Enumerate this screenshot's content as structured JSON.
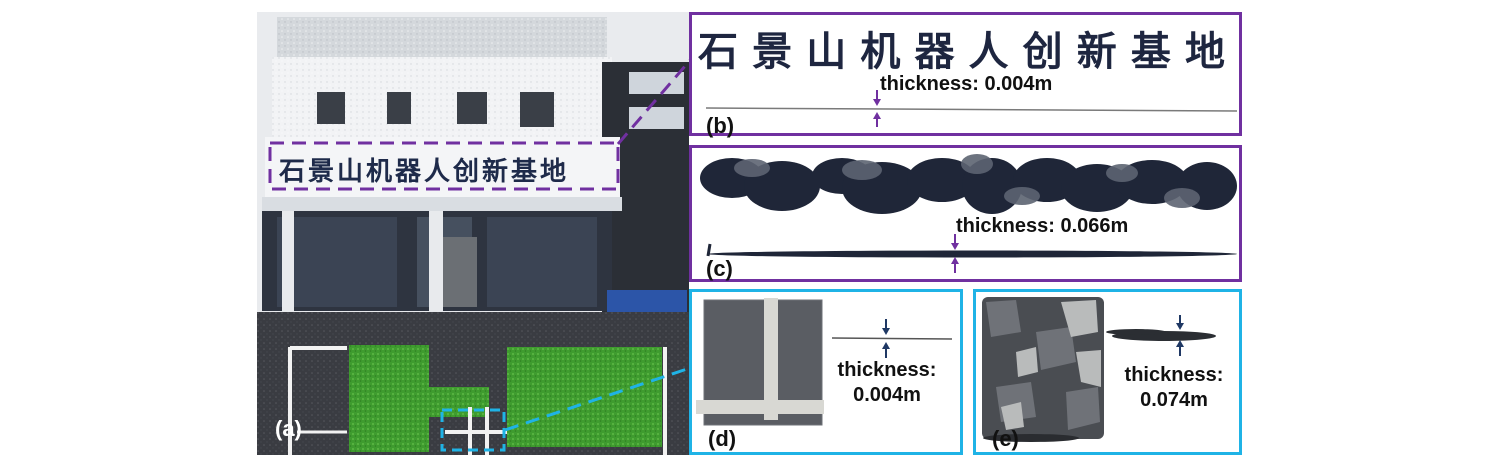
{
  "panels": {
    "a": {
      "label": "(a)"
    },
    "b": {
      "label": "(b)",
      "thickness": "thickness: 0.004m"
    },
    "c": {
      "label": "(c)",
      "thickness": "thickness: 0.066m"
    },
    "d": {
      "label": "(d)",
      "thickness_line1": "thickness:",
      "thickness_line2": "0.004m"
    },
    "e": {
      "label": "(e)",
      "thickness_line1": "thickness:",
      "thickness_line2": "0.074m"
    }
  },
  "sign_text": "石景山机器人创新基地",
  "colors": {
    "purple_frame": "#7030a0",
    "blue_frame": "#1fb3e6",
    "arrow_purple": "#7030a0",
    "arrow_navy": "#1f3864",
    "grass": "#3f9c2f"
  }
}
